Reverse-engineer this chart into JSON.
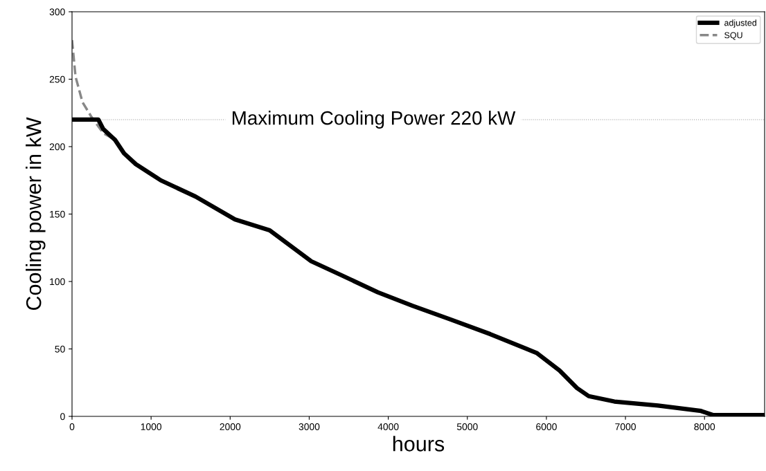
{
  "chart_data": {
    "type": "line",
    "xlabel": "hours",
    "ylabel": "Cooling power in kW",
    "xlim": [
      0,
      8760
    ],
    "xticks": [
      0,
      1000,
      2000,
      3000,
      4000,
      5000,
      6000,
      7000,
      8000
    ],
    "ylim": [
      0,
      300
    ],
    "yticks": [
      0,
      50,
      100,
      150,
      200,
      250,
      300
    ],
    "grid": false,
    "legend": "top right",
    "ref_lines": [
      {
        "axis": "y",
        "value": 220,
        "label": "Maximum Cooling Power 220 kW",
        "color": "#999999",
        "line_style": "dotted"
      }
    ],
    "series": [
      {
        "name": "adjusted",
        "color": "#000000",
        "line_style": "solid",
        "x": [
          0,
          333,
          395,
          544,
          658,
          807,
          1123,
          1561,
          2061,
          2500,
          3026,
          3395,
          3868,
          4307,
          4781,
          5289,
          5877,
          6167,
          6386,
          6535,
          6860,
          7412,
          7956,
          8105,
          8760
        ],
        "values": [
          220,
          220,
          213,
          205,
          195,
          187,
          175,
          163,
          146,
          138,
          115,
          105,
          92,
          82,
          72,
          61,
          47,
          34,
          21,
          15,
          11,
          8,
          4,
          1,
          1
        ]
      },
      {
        "name": "SQU",
        "color": "#888888",
        "line_style": "dashed",
        "x": [
          0,
          44,
          132,
          246,
          395,
          544
        ],
        "values": [
          279,
          252,
          233,
          222,
          210,
          205
        ]
      }
    ]
  }
}
